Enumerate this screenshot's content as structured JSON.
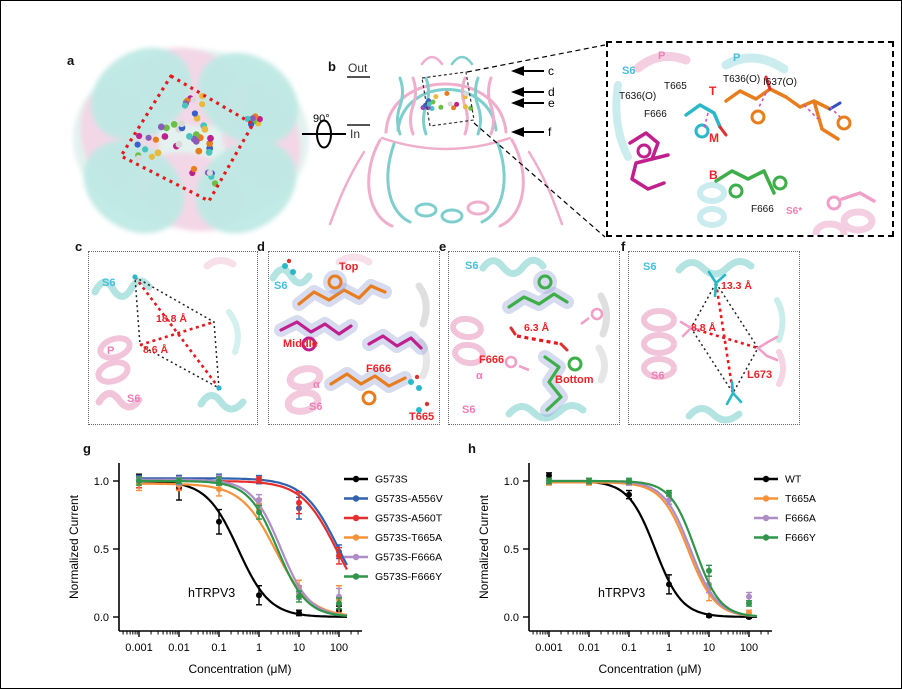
{
  "panels": {
    "a": {
      "letter": "a"
    },
    "b": {
      "letter": "b",
      "out": "Out",
      "in_label": "In",
      "rotation": "90°",
      "arrows": {
        "c": "c",
        "d": "d",
        "e": "e",
        "f": "f"
      }
    },
    "inset": {
      "p_left": "P",
      "p_right": "P",
      "s6": "S6",
      "t665": "T665",
      "t636o_left": "T636(O)",
      "t636o_right": "T636(O)",
      "i637o": "I637(O)",
      "site_t": "T",
      "site_m": "M",
      "site_b": "B",
      "f666_upper": "F666",
      "f666_lower": "F666",
      "s6_star": "S6*"
    },
    "c": {
      "letter": "c",
      "s6_cyan": "S6",
      "p": "P",
      "s6_pink": "S6",
      "dist_long": "18.8 Å",
      "dist_short": "8.6 Å"
    },
    "d": {
      "letter": "d",
      "top": "Top",
      "s6_cyan": "S6",
      "middle": "Middle",
      "f666": "F666",
      "alpha": "α",
      "s6_pink": "S6",
      "t665": "T665"
    },
    "e": {
      "letter": "e",
      "s6_cyan": "S6",
      "dist": "6.3 Å",
      "f666": "F666",
      "alpha": "α",
      "bottom": "Bottom",
      "s6_pink": "S6"
    },
    "f": {
      "letter": "f",
      "s6_cyan": "S6",
      "dist_long": "13.3 Å",
      "dist_short": "8.8 Å",
      "s6_pink": "S6",
      "l673": "L673"
    },
    "g": {
      "letter": "g"
    },
    "h": {
      "letter": "h"
    }
  },
  "chart_data": [
    {
      "id": "g",
      "type": "line",
      "annotation": "hTRPV3",
      "xlabel": "Concentration (μM)",
      "ylabel": "Normalized Current",
      "xscale": "log",
      "x": [
        0.001,
        0.01,
        0.1,
        1,
        10,
        100
      ],
      "yticks": [
        0,
        0.5,
        1
      ],
      "ylim": [
        -0.1,
        1.1
      ],
      "legend_position": "right",
      "series": [
        {
          "name": "G573S",
          "color": "#000000",
          "ic50": 0.3,
          "hill": 1.1,
          "top": 1.0,
          "values": [
            1.02,
            0.95,
            0.7,
            0.16,
            0.03,
            0.05
          ],
          "errors": [
            0.03,
            0.09,
            0.09,
            0.07,
            0.02,
            0.03
          ]
        },
        {
          "name": "G573S-A556V",
          "color": "#3061AE",
          "ic50": 95,
          "hill": 1.0,
          "top": 1.02,
          "values": [
            1.02,
            1.02,
            1.02,
            1.01,
            0.8,
            0.48
          ],
          "errors": [
            0.02,
            0.02,
            0.03,
            0.03,
            0.08,
            0.05
          ]
        },
        {
          "name": "G573S-A560T",
          "color": "#E62E2E",
          "ic50": 85,
          "hill": 1.0,
          "top": 1.0,
          "values": [
            0.99,
            0.97,
            1.0,
            1.01,
            0.84,
            0.45
          ],
          "errors": [
            0.04,
            0.03,
            0.03,
            0.02,
            0.08,
            0.06
          ]
        },
        {
          "name": "G573S-T665A",
          "color": "#F5923A",
          "ic50": 2.6,
          "hill": 1.0,
          "top": 0.98,
          "values": [
            0.98,
            0.97,
            0.94,
            0.83,
            0.22,
            0.13
          ],
          "errors": [
            0.05,
            0.04,
            0.05,
            0.04,
            0.05,
            0.1
          ]
        },
        {
          "name": "G573S-F666A",
          "color": "#AE8CC6",
          "ic50": 3.5,
          "hill": 1.2,
          "top": 1.01,
          "values": [
            1.01,
            1.0,
            1.01,
            0.86,
            0.18,
            0.15
          ],
          "errors": [
            0.02,
            0.03,
            0.03,
            0.04,
            0.05,
            0.06
          ]
        },
        {
          "name": "G573S-F666Y",
          "color": "#2F9649",
          "ic50": 2.9,
          "hill": 1.2,
          "top": 1.0,
          "values": [
            1.0,
            1.0,
            1.0,
            0.77,
            0.15,
            0.1
          ],
          "errors": [
            0.03,
            0.02,
            0.03,
            0.05,
            0.04,
            0.04
          ]
        }
      ]
    },
    {
      "id": "h",
      "type": "line",
      "annotation": "hTRPV3",
      "xlabel": "Concentration (μM)",
      "ylabel": "Normalized Current",
      "xscale": "log",
      "x": [
        0.001,
        0.01,
        0.1,
        1,
        10,
        100
      ],
      "yticks": [
        0,
        0.5,
        1
      ],
      "ylim": [
        -0.1,
        1.1
      ],
      "legend_position": "right",
      "series": [
        {
          "name": "WT",
          "color": "#000000",
          "ic50": 0.45,
          "hill": 1.3,
          "top": 1.0,
          "values": [
            1.04,
            1.0,
            0.9,
            0.24,
            0.01,
            0.0
          ],
          "errors": [
            0.02,
            0.02,
            0.03,
            0.07,
            0.01,
            0.01
          ]
        },
        {
          "name": "T665A",
          "color": "#F5923A",
          "ic50": 3.0,
          "hill": 1.3,
          "top": 0.99,
          "values": [
            0.99,
            0.99,
            0.99,
            0.86,
            0.21,
            0.03
          ],
          "errors": [
            0.02,
            0.02,
            0.02,
            0.03,
            0.09,
            0.02
          ]
        },
        {
          "name": "F666A",
          "color": "#AE8CC6",
          "ic50": 3.4,
          "hill": 1.3,
          "top": 1.0,
          "values": [
            1.0,
            1.0,
            0.99,
            0.86,
            0.24,
            0.15
          ],
          "errors": [
            0.02,
            0.02,
            0.02,
            0.03,
            0.06,
            0.03
          ]
        },
        {
          "name": "F666Y",
          "color": "#2F9649",
          "ic50": 4.5,
          "hill": 1.4,
          "top": 1.0,
          "values": [
            1.0,
            1.0,
            1.0,
            0.91,
            0.34,
            0.1
          ],
          "errors": [
            0.02,
            0.02,
            0.02,
            0.02,
            0.04,
            0.02
          ]
        }
      ]
    }
  ]
}
